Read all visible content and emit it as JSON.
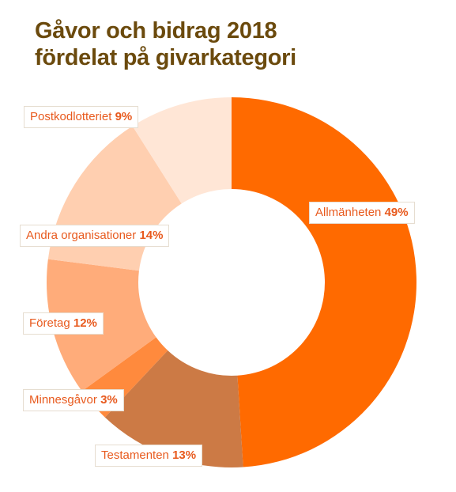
{
  "title_line1": "Gåvor och bidrag 2018",
  "title_line2": "fördelat på givarkategori",
  "colors": {
    "title": "#6b4a0d",
    "label_text": "#e85a1e",
    "label_border": "#e6ddd0"
  },
  "chart_data": {
    "type": "pie",
    "variant": "donut",
    "title": "Gåvor och bidrag 2018 fördelat på givarkategori",
    "slices": [
      {
        "label": "Allmänheten",
        "value": 49,
        "value_label": "49%",
        "color": "#ff6a00"
      },
      {
        "label": "Testamenten",
        "value": 13,
        "value_label": "13%",
        "color": "#cc7a45"
      },
      {
        "label": "Minnesgåvor",
        "value": 3,
        "value_label": "3%",
        "color": "#ff8a3d"
      },
      {
        "label": "Företag",
        "value": 12,
        "value_label": "12%",
        "color": "#ffac7a"
      },
      {
        "label": "Andra organisationer",
        "value": 14,
        "value_label": "14%",
        "color": "#ffcfb0"
      },
      {
        "label": "Postkodlotteriet",
        "value": 9,
        "value_label": "9%",
        "color": "#ffe6d6"
      }
    ]
  }
}
